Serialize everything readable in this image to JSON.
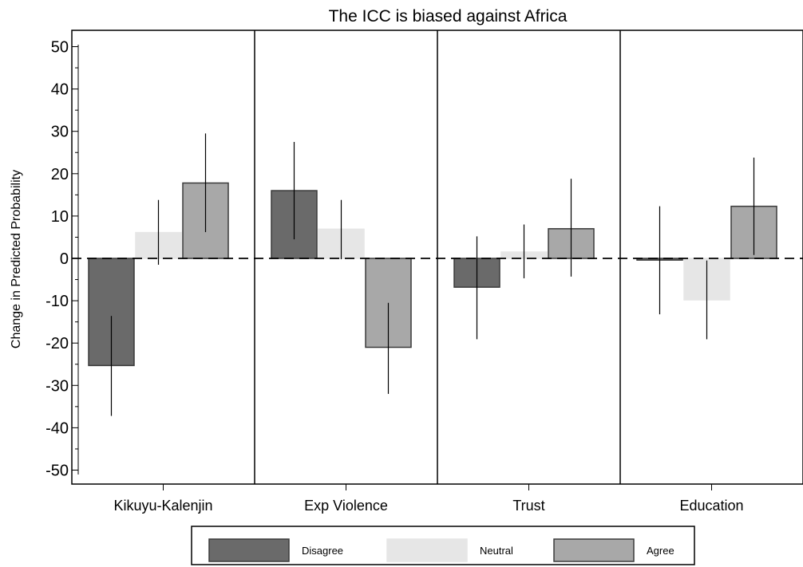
{
  "chart_data": {
    "type": "bar",
    "title": "The ICC is biased against Africa",
    "xlabel": "",
    "ylabel": "Change in Predicted Probability",
    "ylim": [
      -53,
      53
    ],
    "yticks": [
      -50,
      -40,
      -30,
      -20,
      -10,
      0,
      10,
      20,
      30,
      40,
      50
    ],
    "grid": false,
    "legend_position": "bottom",
    "reference_line": 0,
    "categories": [
      "Kikuyu-Kalenjin",
      "Exp Violence",
      "Trust",
      "Education"
    ],
    "series": [
      {
        "name": "Disagree",
        "color": "#6a6a6a",
        "values": [
          -25.3,
          16.0,
          -6.8,
          -0.4
        ],
        "ci": [
          [
            -37.2,
            -13.6
          ],
          [
            4.5,
            27.5
          ],
          [
            -19.1,
            5.2
          ],
          [
            -13.2,
            12.3
          ]
        ]
      },
      {
        "name": "Neutral",
        "color": "#e6e6e6",
        "values": [
          6.1,
          6.9,
          1.5,
          -9.8
        ],
        "ci": [
          [
            -1.5,
            13.8
          ],
          [
            -0.2,
            13.8
          ],
          [
            -4.7,
            8.0
          ],
          [
            -19.1,
            -0.5
          ]
        ]
      },
      {
        "name": "Agree",
        "color": "#a8a8a8",
        "values": [
          17.8,
          -21.0,
          7.0,
          12.3
        ],
        "ci": [
          [
            6.2,
            29.5
          ],
          [
            -32.0,
            -10.5
          ],
          [
            -4.3,
            18.8
          ],
          [
            0.8,
            23.8
          ]
        ]
      }
    ]
  }
}
